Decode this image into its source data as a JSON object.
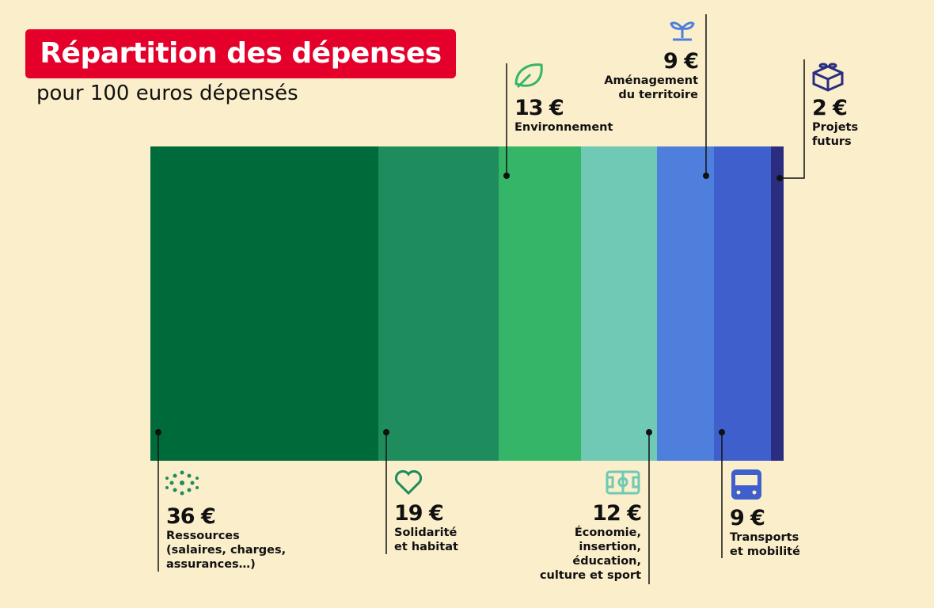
{
  "chart_data": {
    "type": "stacked-bar",
    "title": "Répartition des dépenses",
    "subtitle": "pour 100 euros dépensés",
    "categories": [
      "Ressources\n(salaires, charges,\nassurances…)",
      "Solidarité\net habitat",
      "Environnement",
      "Économie,\ninsertion,\néducation,\nculture et sport",
      "Aménagement\ndu territoire",
      "Transports\net mobilité",
      "Projets\nfuturs"
    ],
    "values": [
      36,
      19,
      13,
      12,
      9,
      9,
      2
    ],
    "value_labels": [
      "36 €",
      "19 €",
      "13 €",
      "12 €",
      "9 €",
      "9 €",
      "2 €"
    ],
    "colors": [
      "#006b3a",
      "#1e8c5c",
      "#35b567",
      "#6fc9b4",
      "#4f7fdc",
      "#3e5fcc",
      "#2b2e80"
    ],
    "xlim": [
      0,
      100
    ]
  }
}
